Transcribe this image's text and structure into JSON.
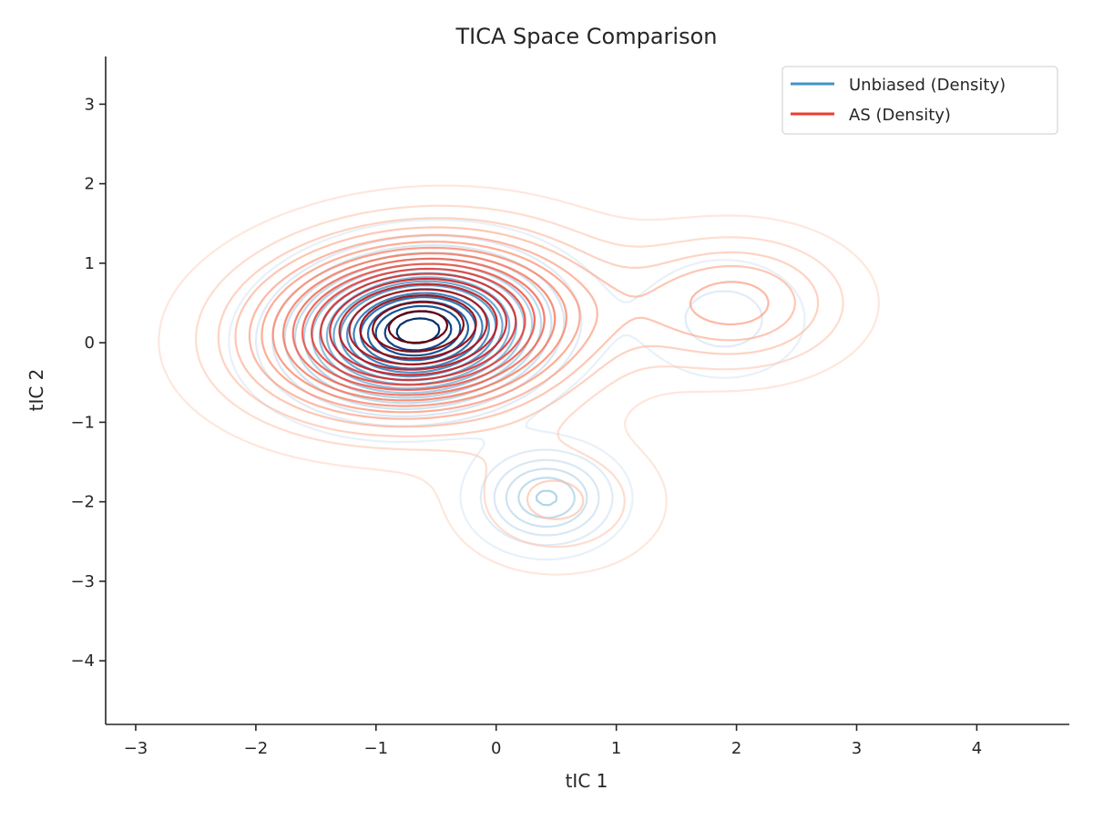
{
  "chart_data": {
    "type": "contour",
    "title": "TICA Space Comparison",
    "xlabel": "tIC 1",
    "ylabel": "tIC 2",
    "xlim": [
      -3.25,
      4.77
    ],
    "ylim": [
      -4.8,
      3.6
    ],
    "xticks": [
      -3,
      -2,
      -1,
      0,
      1,
      2,
      3,
      4
    ],
    "xtick_labels": [
      "−3",
      "−2",
      "−1",
      "0",
      "1",
      "2",
      "3",
      "4"
    ],
    "yticks": [
      3,
      2,
      1,
      0,
      -1,
      -2,
      -3,
      -4
    ],
    "ytick_labels": [
      "3",
      "2",
      "1",
      "0",
      "−1",
      "−2",
      "−3",
      "−4"
    ],
    "grid": false,
    "legend_position": "top-right",
    "series": [
      {
        "name": "Unbiased (Density)",
        "legend_color": "#4292c6",
        "colormap": "Blues",
        "components": [
          {
            "weight": 1.0,
            "mean": [
              -0.65,
              0.15
            ],
            "sd": [
              0.62,
              0.55
            ],
            "rho": 0.1
          },
          {
            "weight": 0.32,
            "mean": [
              0.42,
              -1.95
            ],
            "sd": [
              0.35,
              0.38
            ],
            "rho": 0.0
          },
          {
            "weight": 0.12,
            "mean": [
              1.9,
              0.3
            ],
            "sd": [
              0.45,
              0.5
            ],
            "rho": 0.0
          }
        ]
      },
      {
        "name": "AS (Density)",
        "legend_color": "#ef3b2c",
        "colormap": "Reds",
        "components": [
          {
            "weight": 1.0,
            "mean": [
              -0.65,
              0.2
            ],
            "sd": [
              0.85,
              0.7
            ],
            "rho": 0.1
          },
          {
            "weight": 0.28,
            "mean": [
              2.0,
              0.5
            ],
            "sd": [
              0.6,
              0.55
            ],
            "rho": 0.0
          },
          {
            "weight": 0.16,
            "mean": [
              0.5,
              -2.0
            ],
            "sd": [
              0.55,
              0.55
            ],
            "rho": 0.0
          }
        ]
      }
    ]
  }
}
